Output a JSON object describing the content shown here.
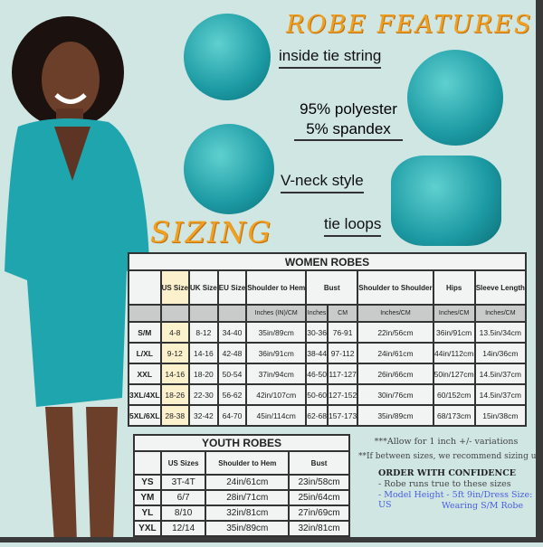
{
  "features": {
    "title": "ROBE FEATURES",
    "items": [
      "inside tie string",
      "95% polyester",
      "5% spandex",
      "V-neck style",
      "tie loops"
    ]
  },
  "sizing_title": "SIZING",
  "women": {
    "title": "WOMEN ROBES",
    "headers": [
      "",
      "US Size",
      "UK Size",
      "EU Size",
      "Shoulder to Hem",
      "Bust",
      "Shoulder to Shoulder",
      "Hips",
      "Sleeve Length"
    ],
    "subheaders": [
      "",
      "",
      "",
      "",
      "Inches (IN)/CM",
      "Inches",
      "CM",
      "Inches/CM",
      "Inches/CM",
      "Inches/CM"
    ],
    "rows": [
      [
        "S/M",
        "4-8",
        "8-12",
        "34-40",
        "35in/89cm",
        "30-36",
        "76-91",
        "22in/56cm",
        "36in/91cm",
        "13.5in/34cm"
      ],
      [
        "L/XL",
        "9-12",
        "14-16",
        "42-48",
        "36in/91cm",
        "38-44",
        "97-112",
        "24in/61cm",
        "44in/112cm",
        "14in/36cm"
      ],
      [
        "XXL",
        "14-16",
        "18-20",
        "50-54",
        "37in/94cm",
        "46-50",
        "117-127",
        "26in/66cm",
        "50in/127cm",
        "14.5in/37cm"
      ],
      [
        "3XL/4XL",
        "18-26",
        "22-30",
        "56-62",
        "42in/107cm",
        "50-60",
        "127-152",
        "30in/76cm",
        "60/152cm",
        "14.5in/37cm"
      ],
      [
        "5XL/6XL",
        "28-38",
        "32-42",
        "64-70",
        "45in/114cm",
        "62-68",
        "157-173",
        "35in/89cm",
        "68/173cm",
        "15in/38cm"
      ]
    ]
  },
  "youth": {
    "title": "YOUTH ROBES",
    "headers": [
      "",
      "US Sizes",
      "Shoulder to Hem",
      "Bust"
    ],
    "rows": [
      [
        "YS",
        "3T-4T",
        "24in/61cm",
        "23in/58cm"
      ],
      [
        "YM",
        "6/7",
        "28in/71cm",
        "25in/64cm"
      ],
      [
        "YL",
        "8/10",
        "32in/81cm",
        "27in/69cm"
      ],
      [
        "YXL",
        "12/14",
        "35in/89cm",
        "32in/81cm"
      ]
    ]
  },
  "notes": {
    "allow": "***Allow for 1 inch +/- variations",
    "between": "**If between sizes, we recommend sizing up",
    "order_title": "ORDER WITH CONFIDENCE",
    "order_1": "- Robe runs true to these sizes",
    "model_1": "- Model Height - 5ft 9in/Dress Size: 8 US",
    "model_2": "Wearing S/M Robe"
  },
  "colors": {
    "background": "#cfe6e3",
    "robe": "#1fa5ad",
    "title_orange": "#f0a020",
    "model_text": "#4a5de0"
  }
}
